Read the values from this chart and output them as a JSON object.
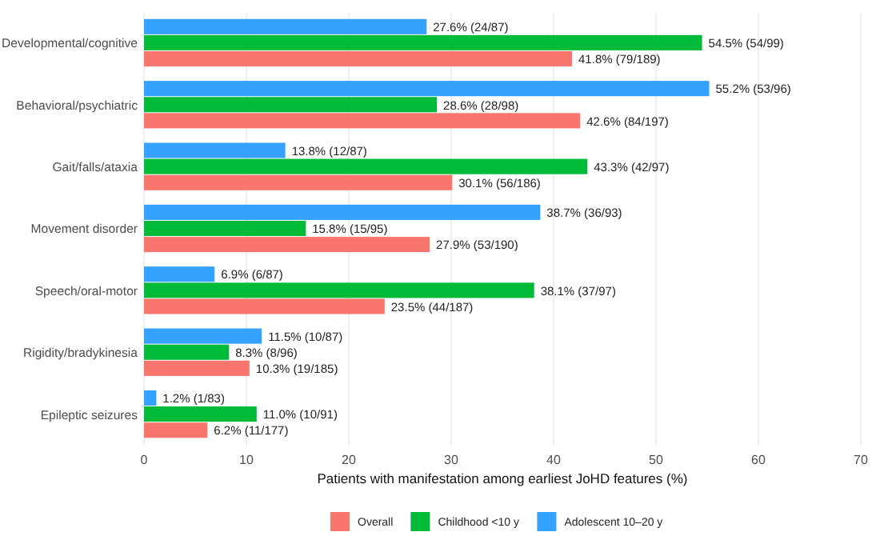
{
  "chart_data": {
    "type": "bar",
    "orientation": "horizontal",
    "xlabel": "Patients with manifestation among earliest JoHD features (%)",
    "categories": [
      "Developmental/cognitive",
      "Behavioral/psychiatric",
      "Gait/falls/ataxia",
      "Movement disorder",
      "Speech/oral-motor",
      "Rigidity/bradykinesia",
      "Epileptic seizures"
    ],
    "series": [
      {
        "name": "Overall",
        "color": "#f8766d",
        "values": [
          41.8,
          42.6,
          30.1,
          27.9,
          23.5,
          10.3,
          6.2
        ],
        "value_labels": [
          "41.8% (79/189)",
          "42.6% (84/197)",
          "30.1% (56/186)",
          "27.9% (53/190)",
          "23.5% (44/187)",
          "10.3% (19/185)",
          "6.2% (11/177)"
        ]
      },
      {
        "name": "Childhood <10 y",
        "color": "#00ba38",
        "values": [
          54.5,
          28.6,
          43.3,
          15.8,
          38.1,
          8.3,
          11.0
        ],
        "value_labels": [
          "54.5% (54/99)",
          "28.6% (28/98)",
          "43.3% (42/97)",
          "15.8% (15/95)",
          "38.1% (37/97)",
          "8.3% (8/96)",
          "11.0% (10/91)"
        ]
      },
      {
        "name": "Adolescent 10–20 y",
        "color": "#35a2ff",
        "values": [
          27.6,
          55.2,
          13.8,
          38.7,
          6.9,
          11.5,
          1.2
        ],
        "value_labels": [
          "27.6% (24/87)",
          "55.2% (53/96)",
          "13.8% (12/87)",
          "38.7% (36/93)",
          "6.9% (6/87)",
          "11.5% (10/87)",
          "1.2% (1/83)"
        ]
      }
    ],
    "xlim": [
      0,
      70
    ],
    "xticks": [
      0,
      10,
      20,
      30,
      40,
      50,
      60,
      70
    ],
    "grid": "x",
    "legend": "bottom"
  }
}
